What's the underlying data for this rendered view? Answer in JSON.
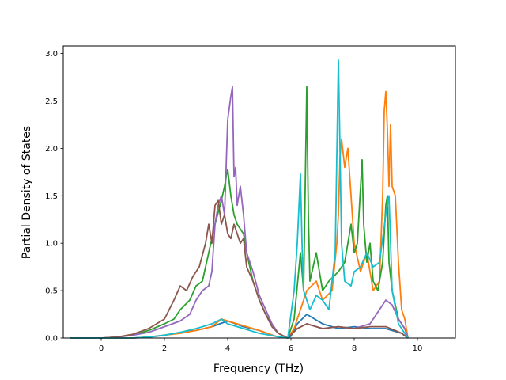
{
  "chart_data": {
    "type": "line",
    "title": "",
    "xlabel": "Frequency (THz)",
    "ylabel": "Partial Density of States",
    "xlim": [
      -1.2,
      11.2
    ],
    "ylim": [
      0,
      3.08
    ],
    "x_ticks": [
      0,
      2,
      4,
      6,
      8,
      10
    ],
    "x_tick_labels": [
      "0",
      "2",
      "4",
      "6",
      "8",
      "10"
    ],
    "y_ticks": [
      0,
      0.5,
      1.0,
      1.5,
      2.0,
      2.5,
      3.0
    ],
    "y_tick_labels": [
      "0.0",
      "0.5",
      "1.0",
      "1.5",
      "2.0",
      "2.5",
      "3.0"
    ],
    "grid": false,
    "legend": "none",
    "series": [
      {
        "color": "#1f77b4",
        "points": [
          [
            -1,
            0
          ],
          [
            0,
            0
          ],
          [
            1,
            0
          ],
          [
            1.5,
            0.01
          ],
          [
            2,
            0.03
          ],
          [
            2.5,
            0.06
          ],
          [
            3,
            0.08
          ],
          [
            3.5,
            0.12
          ],
          [
            4,
            0.18
          ],
          [
            4.5,
            0.12
          ],
          [
            5,
            0.08
          ],
          [
            5.5,
            0.02
          ],
          [
            5.9,
            0
          ],
          [
            6.0,
            0.02
          ],
          [
            6.2,
            0.15
          ],
          [
            6.5,
            0.25
          ],
          [
            7.0,
            0.15
          ],
          [
            7.5,
            0.1
          ],
          [
            8.0,
            0.12
          ],
          [
            8.5,
            0.1
          ],
          [
            9.0,
            0.1
          ],
          [
            9.5,
            0.05
          ],
          [
            9.7,
            0
          ]
        ]
      },
      {
        "color": "#ff7f0e",
        "points": [
          [
            -1,
            0
          ],
          [
            0,
            0
          ],
          [
            1,
            0
          ],
          [
            1.5,
            0.01
          ],
          [
            2,
            0.03
          ],
          [
            2.5,
            0.05
          ],
          [
            3,
            0.08
          ],
          [
            3.5,
            0.12
          ],
          [
            3.8,
            0.2
          ],
          [
            4,
            0.18
          ],
          [
            4.3,
            0.15
          ],
          [
            4.6,
            0.12
          ],
          [
            5,
            0.08
          ],
          [
            5.5,
            0.02
          ],
          [
            5.9,
            0
          ],
          [
            6.1,
            0.1
          ],
          [
            6.3,
            0.3
          ],
          [
            6.5,
            0.5
          ],
          [
            6.8,
            0.6
          ],
          [
            7.0,
            0.4
          ],
          [
            7.3,
            0.5
          ],
          [
            7.45,
            1.0
          ],
          [
            7.5,
            1.3
          ],
          [
            7.55,
            1.9
          ],
          [
            7.6,
            2.1
          ],
          [
            7.7,
            1.8
          ],
          [
            7.8,
            2.0
          ],
          [
            7.9,
            1.5
          ],
          [
            8.0,
            1.0
          ],
          [
            8.2,
            0.7
          ],
          [
            8.4,
            0.9
          ],
          [
            8.6,
            0.5
          ],
          [
            8.8,
            0.6
          ],
          [
            8.9,
            1.5
          ],
          [
            8.95,
            2.4
          ],
          [
            9.0,
            2.6
          ],
          [
            9.05,
            2.2
          ],
          [
            9.1,
            1.6
          ],
          [
            9.15,
            2.25
          ],
          [
            9.2,
            1.6
          ],
          [
            9.3,
            1.5
          ],
          [
            9.4,
            0.8
          ],
          [
            9.5,
            0.3
          ],
          [
            9.6,
            0.2
          ],
          [
            9.7,
            0
          ]
        ]
      },
      {
        "color": "#2ca02c",
        "points": [
          [
            -1,
            0
          ],
          [
            0,
            0
          ],
          [
            0.5,
            0.01
          ],
          [
            1,
            0.03
          ],
          [
            1.5,
            0.08
          ],
          [
            2,
            0.15
          ],
          [
            2.3,
            0.2
          ],
          [
            2.5,
            0.3
          ],
          [
            2.8,
            0.4
          ],
          [
            3.0,
            0.55
          ],
          [
            3.2,
            0.6
          ],
          [
            3.4,
            0.9
          ],
          [
            3.6,
            1.2
          ],
          [
            3.8,
            1.45
          ],
          [
            3.9,
            1.6
          ],
          [
            4.0,
            1.78
          ],
          [
            4.1,
            1.5
          ],
          [
            4.2,
            1.3
          ],
          [
            4.3,
            1.2
          ],
          [
            4.5,
            1.1
          ],
          [
            4.6,
            0.9
          ],
          [
            4.8,
            0.6
          ],
          [
            5.0,
            0.4
          ],
          [
            5.2,
            0.25
          ],
          [
            5.4,
            0.15
          ],
          [
            5.6,
            0.05
          ],
          [
            5.9,
            0
          ],
          [
            6.1,
            0.2
          ],
          [
            6.3,
            0.9
          ],
          [
            6.4,
            0.5
          ],
          [
            6.5,
            2.65
          ],
          [
            6.55,
            1.3
          ],
          [
            6.6,
            0.6
          ],
          [
            6.8,
            0.9
          ],
          [
            7.0,
            0.5
          ],
          [
            7.2,
            0.6
          ],
          [
            7.5,
            0.7
          ],
          [
            7.7,
            0.8
          ],
          [
            7.9,
            1.2
          ],
          [
            8.0,
            0.9
          ],
          [
            8.1,
            1.0
          ],
          [
            8.25,
            1.88
          ],
          [
            8.3,
            1.2
          ],
          [
            8.4,
            0.8
          ],
          [
            8.5,
            1.0
          ],
          [
            8.6,
            0.6
          ],
          [
            8.75,
            0.5
          ],
          [
            8.9,
            0.8
          ],
          [
            9.0,
            1.4
          ],
          [
            9.05,
            1.5
          ],
          [
            9.1,
            0.8
          ],
          [
            9.2,
            0.5
          ],
          [
            9.4,
            0.2
          ],
          [
            9.6,
            0.1
          ],
          [
            9.7,
            0
          ]
        ]
      },
      {
        "color": "#9467bd",
        "points": [
          [
            -1,
            0
          ],
          [
            0,
            0
          ],
          [
            0.5,
            0.01
          ],
          [
            1,
            0.03
          ],
          [
            1.5,
            0.06
          ],
          [
            2,
            0.12
          ],
          [
            2.5,
            0.18
          ],
          [
            2.8,
            0.25
          ],
          [
            3.0,
            0.4
          ],
          [
            3.2,
            0.5
          ],
          [
            3.4,
            0.55
          ],
          [
            3.5,
            0.7
          ],
          [
            3.6,
            1.2
          ],
          [
            3.7,
            1.4
          ],
          [
            3.8,
            1.5
          ],
          [
            3.9,
            1.3
          ],
          [
            4.0,
            2.3
          ],
          [
            4.1,
            2.55
          ],
          [
            4.15,
            2.65
          ],
          [
            4.2,
            1.7
          ],
          [
            4.25,
            1.8
          ],
          [
            4.3,
            1.4
          ],
          [
            4.4,
            1.6
          ],
          [
            4.5,
            1.3
          ],
          [
            4.6,
            0.9
          ],
          [
            4.8,
            0.7
          ],
          [
            5.0,
            0.45
          ],
          [
            5.2,
            0.3
          ],
          [
            5.4,
            0.15
          ],
          [
            5.6,
            0.05
          ],
          [
            5.9,
            0
          ],
          [
            6.2,
            0.1
          ],
          [
            6.5,
            0.15
          ],
          [
            7.0,
            0.1
          ],
          [
            7.5,
            0.12
          ],
          [
            8.0,
            0.1
          ],
          [
            8.5,
            0.15
          ],
          [
            8.8,
            0.3
          ],
          [
            9.0,
            0.4
          ],
          [
            9.2,
            0.35
          ],
          [
            9.4,
            0.2
          ],
          [
            9.6,
            0.1
          ],
          [
            9.7,
            0
          ]
        ]
      },
      {
        "color": "#8c564b",
        "points": [
          [
            -1,
            0
          ],
          [
            0,
            0
          ],
          [
            0.5,
            0.01
          ],
          [
            1,
            0.04
          ],
          [
            1.5,
            0.1
          ],
          [
            2.0,
            0.2
          ],
          [
            2.3,
            0.4
          ],
          [
            2.5,
            0.55
          ],
          [
            2.7,
            0.5
          ],
          [
            2.9,
            0.65
          ],
          [
            3.1,
            0.75
          ],
          [
            3.3,
            1.0
          ],
          [
            3.4,
            1.2
          ],
          [
            3.5,
            1.0
          ],
          [
            3.6,
            1.4
          ],
          [
            3.7,
            1.45
          ],
          [
            3.8,
            1.2
          ],
          [
            3.9,
            1.3
          ],
          [
            4.0,
            1.1
          ],
          [
            4.1,
            1.05
          ],
          [
            4.2,
            1.2
          ],
          [
            4.4,
            1.0
          ],
          [
            4.5,
            1.05
          ],
          [
            4.6,
            0.75
          ],
          [
            4.8,
            0.6
          ],
          [
            5.0,
            0.4
          ],
          [
            5.2,
            0.25
          ],
          [
            5.4,
            0.12
          ],
          [
            5.6,
            0.05
          ],
          [
            5.9,
            0
          ],
          [
            6.2,
            0.1
          ],
          [
            6.5,
            0.15
          ],
          [
            7.0,
            0.1
          ],
          [
            7.5,
            0.12
          ],
          [
            8.0,
            0.1
          ],
          [
            8.5,
            0.12
          ],
          [
            9.0,
            0.12
          ],
          [
            9.3,
            0.08
          ],
          [
            9.5,
            0.05
          ],
          [
            9.7,
            0
          ]
        ]
      },
      {
        "color": "#17becf",
        "points": [
          [
            -1,
            0
          ],
          [
            0,
            0
          ],
          [
            1,
            0
          ],
          [
            1.5,
            0.01
          ],
          [
            2,
            0.03
          ],
          [
            2.5,
            0.06
          ],
          [
            3,
            0.1
          ],
          [
            3.5,
            0.15
          ],
          [
            3.8,
            0.2
          ],
          [
            4,
            0.15
          ],
          [
            4.5,
            0.1
          ],
          [
            5,
            0.05
          ],
          [
            5.5,
            0.02
          ],
          [
            5.9,
            0
          ],
          [
            6.1,
            0.5
          ],
          [
            6.2,
            1.0
          ],
          [
            6.3,
            1.73
          ],
          [
            6.35,
            1.0
          ],
          [
            6.4,
            0.5
          ],
          [
            6.6,
            0.3
          ],
          [
            6.8,
            0.45
          ],
          [
            7.0,
            0.4
          ],
          [
            7.2,
            0.3
          ],
          [
            7.4,
            0.9
          ],
          [
            7.5,
            2.93
          ],
          [
            7.55,
            2.0
          ],
          [
            7.6,
            1.0
          ],
          [
            7.7,
            0.6
          ],
          [
            7.9,
            0.55
          ],
          [
            8.0,
            0.7
          ],
          [
            8.2,
            0.75
          ],
          [
            8.4,
            0.9
          ],
          [
            8.6,
            0.75
          ],
          [
            8.8,
            0.8
          ],
          [
            9.0,
            1.3
          ],
          [
            9.1,
            1.5
          ],
          [
            9.2,
            0.5
          ],
          [
            9.4,
            0.15
          ],
          [
            9.6,
            0.05
          ],
          [
            9.7,
            0
          ]
        ]
      }
    ]
  }
}
